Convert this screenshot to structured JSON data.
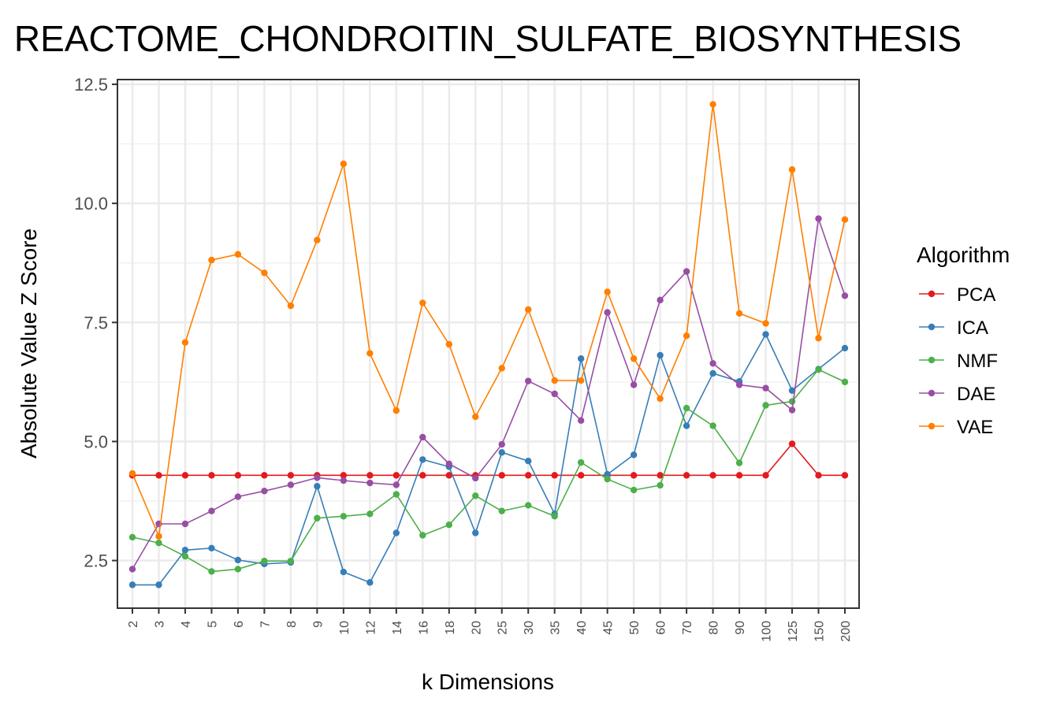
{
  "chart_data": {
    "type": "line",
    "title": "REACTOME_CHONDROITIN_SULFATE_BIOSYNTHESIS",
    "xlabel": "k Dimensions",
    "ylabel": "Absolute Value Z Score",
    "x": [
      "2",
      "3",
      "4",
      "5",
      "6",
      "7",
      "8",
      "9",
      "10",
      "12",
      "14",
      "16",
      "18",
      "20",
      "25",
      "30",
      "35",
      "40",
      "45",
      "50",
      "60",
      "70",
      "80",
      "90",
      "100",
      "125",
      "150",
      "200"
    ],
    "ylim": [
      1.5,
      12.6
    ],
    "yticks": [
      2.5,
      5.0,
      7.5,
      10.0,
      12.5
    ],
    "ytick_labels": [
      "2.5",
      "5.0",
      "7.5",
      "10.0",
      "12.5"
    ],
    "grid": true,
    "legend": {
      "title": "Algorithm",
      "placement": "right"
    },
    "series": [
      {
        "name": "PCA",
        "color": "#E41A1C",
        "values": [
          4.29,
          4.29,
          4.29,
          4.29,
          4.29,
          4.29,
          4.29,
          4.29,
          4.29,
          4.29,
          4.29,
          4.29,
          4.29,
          4.29,
          4.29,
          4.29,
          4.29,
          4.29,
          4.29,
          4.29,
          4.29,
          4.29,
          4.29,
          4.29,
          4.29,
          4.95,
          4.29,
          4.29
        ]
      },
      {
        "name": "ICA",
        "color": "#377EB8",
        "values": [
          1.99,
          1.99,
          2.72,
          2.76,
          2.51,
          2.43,
          2.46,
          4.06,
          2.26,
          2.04,
          3.08,
          4.62,
          4.47,
          3.08,
          4.77,
          4.59,
          3.48,
          6.74,
          4.31,
          4.72,
          6.81,
          5.33,
          6.43,
          6.26,
          7.25,
          6.07,
          6.52,
          6.96
        ]
      },
      {
        "name": "NMF",
        "color": "#4DAF4A",
        "values": [
          2.99,
          2.87,
          2.59,
          2.27,
          2.32,
          2.49,
          2.49,
          3.39,
          3.43,
          3.48,
          3.89,
          3.03,
          3.25,
          3.86,
          3.54,
          3.66,
          3.43,
          4.56,
          4.21,
          3.98,
          4.08,
          5.7,
          5.33,
          4.55,
          5.76,
          5.84,
          6.51,
          6.25
        ]
      },
      {
        "name": "DAE",
        "color": "#984EA3",
        "values": [
          2.32,
          3.27,
          3.27,
          3.54,
          3.84,
          3.96,
          4.09,
          4.24,
          4.18,
          4.13,
          4.09,
          5.09,
          4.53,
          4.23,
          4.94,
          6.27,
          6.0,
          5.44,
          7.71,
          6.19,
          7.97,
          8.57,
          6.64,
          6.19,
          6.12,
          5.66,
          9.68,
          8.06
        ]
      },
      {
        "name": "VAE",
        "color": "#FF7F00",
        "values": [
          4.33,
          3.01,
          7.08,
          8.81,
          8.93,
          8.54,
          7.85,
          9.23,
          10.83,
          6.85,
          5.65,
          7.91,
          7.04,
          5.52,
          6.54,
          7.77,
          6.28,
          6.28,
          8.14,
          6.74,
          5.9,
          7.22,
          12.08,
          7.69,
          7.48,
          10.71,
          7.17,
          9.66
        ]
      }
    ]
  }
}
